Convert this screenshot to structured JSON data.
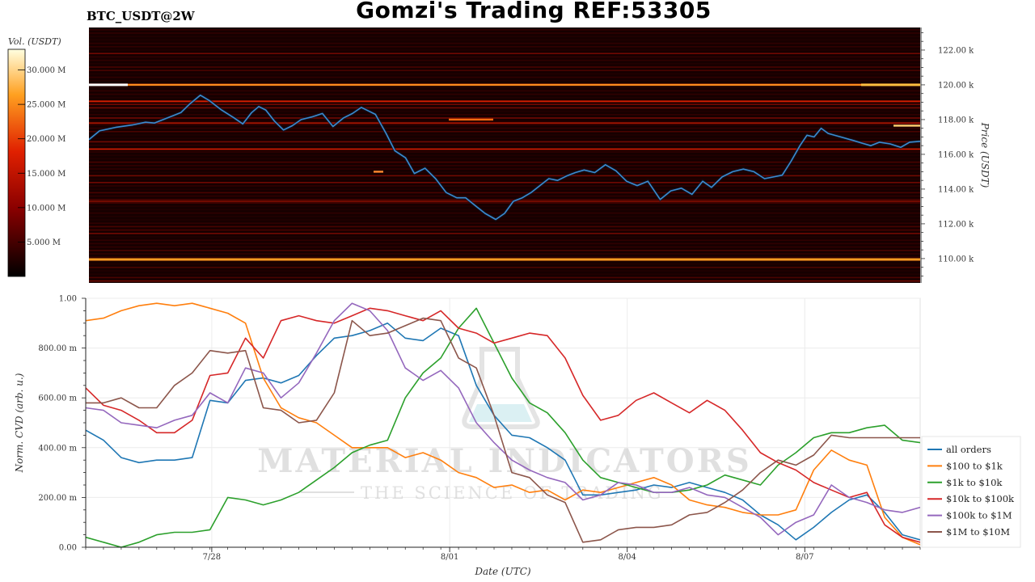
{
  "header": {
    "title": "Gomzi's Trading REF:53305",
    "symbol": "BTC_USDT@2W"
  },
  "colorbar": {
    "label": "Vol. (USDT)",
    "ticks": [
      "30.000 M",
      "25.000 M",
      "20.000 M",
      "15.000 M",
      "10.000 M",
      "5.000 M"
    ]
  },
  "watermark": {
    "line1": "MATERIAL INDICATORS",
    "line2": "THE SCIENCE OF TRADING"
  },
  "chart_data": [
    {
      "type": "heatmap",
      "title": "BTC_USDT@2W",
      "ylabel": "Price (USDT)",
      "ylim": [
        108600,
        123300
      ],
      "yticks": [
        110000,
        112000,
        114000,
        116000,
        118000,
        120000,
        122000
      ],
      "ytick_labels": [
        "110.00 k",
        "112.00 k",
        "114.00 k",
        "116.00 k",
        "118.00 k",
        "120.00 k",
        "122.00 k"
      ],
      "colorbar_range_musdt": [
        0,
        33
      ],
      "price_line": {
        "name": "price",
        "color": "#3b8bd0",
        "x": [
          0,
          0.6,
          1.5,
          2.5,
          3.2,
          3.7,
          4.2,
          4.7,
          5.2,
          5.7,
          6.3,
          6.8,
          7.5,
          8.2,
          8.7,
          9.2,
          9.6,
          10.0,
          10.5,
          11.0,
          11.5,
          12.0,
          12.6,
          13.2,
          13.8,
          14.4,
          14.9,
          15.4,
          15.8,
          16.2,
          16.8,
          17.3,
          17.9,
          18.4,
          19.0,
          19.6,
          20.2,
          20.8,
          21.3,
          21.9,
          22.4,
          23.0,
          23.5,
          24.0,
          24.5,
          25.0,
          25.5,
          26.0,
          26.5,
          27.0,
          27.5,
          28.0,
          28.6,
          29.2,
          29.8,
          30.4,
          31.0,
          31.6,
          32.3,
          32.9,
          33.5,
          34.1,
          34.7,
          35.2,
          35.8,
          36.4,
          37.0,
          37.6,
          38.2,
          38.7,
          39.2,
          39.7,
          40.2,
          40.6,
          41.0,
          41.4,
          41.8,
          42.5,
          43.2,
          43.7,
          44.2,
          44.7,
          45.3,
          45.9,
          46.4,
          47.0
        ],
        "y": [
          116850,
          117350,
          117550,
          117700,
          117850,
          117800,
          118000,
          118200,
          118400,
          118900,
          119400,
          119100,
          118550,
          118100,
          117750,
          118400,
          118750,
          118550,
          117900,
          117400,
          117650,
          118000,
          118150,
          118350,
          117600,
          118100,
          118350,
          118700,
          118500,
          118300,
          117200,
          116200,
          115800,
          114900,
          115200,
          114600,
          113800,
          113500,
          113500,
          113000,
          112600,
          112250,
          112600,
          113300,
          113500,
          113800,
          114200,
          114600,
          114500,
          114750,
          114950,
          115100,
          114950,
          115400,
          115050,
          114450,
          114200,
          114450,
          113400,
          113900,
          114050,
          113700,
          114450,
          114100,
          114700,
          115000,
          115150,
          115000,
          114600,
          114700,
          114800,
          115600,
          116500,
          117100,
          117000,
          117500,
          117200,
          117000,
          116800,
          116650,
          116500,
          116700,
          116600,
          116400,
          116700,
          116750
        ]
      }
    },
    {
      "type": "line",
      "xlabel": "Date (UTC)",
      "ylabel": "Norm. CVD (arb. u.)",
      "xlim": [
        0,
        47
      ],
      "ylim": [
        0,
        1
      ],
      "xticks": [
        7.1,
        20.5,
        30.5,
        40.5
      ],
      "xtick_labels": [
        "7/28",
        "8/01",
        "8/04",
        "8/07"
      ],
      "yticks": [
        0,
        0.2,
        0.4,
        0.6,
        0.8,
        1.0
      ],
      "ytick_labels": [
        "0.00",
        "200.00 m",
        "400.00 m",
        "600.00 m",
        "800.00 m",
        "1.00"
      ],
      "grid": true,
      "legend": "right",
      "x": [
        0,
        1,
        2,
        3,
        4,
        5,
        6,
        7,
        8,
        9,
        10,
        11,
        12,
        13,
        14,
        15,
        16,
        17,
        18,
        19,
        20,
        21,
        22,
        23,
        24,
        25,
        26,
        27,
        28,
        29,
        30,
        31,
        32,
        33,
        34,
        35,
        36,
        37,
        38,
        39,
        40,
        41,
        42,
        43,
        44,
        45,
        46,
        47
      ],
      "series": [
        {
          "name": "all orders",
          "color": "#1f77b4",
          "values": [
            0.47,
            0.43,
            0.36,
            0.34,
            0.35,
            0.35,
            0.36,
            0.59,
            0.58,
            0.67,
            0.68,
            0.66,
            0.69,
            0.77,
            0.84,
            0.85,
            0.87,
            0.9,
            0.84,
            0.83,
            0.88,
            0.85,
            0.65,
            0.53,
            0.45,
            0.44,
            0.4,
            0.35,
            0.21,
            0.21,
            0.22,
            0.23,
            0.25,
            0.24,
            0.26,
            0.24,
            0.22,
            0.19,
            0.13,
            0.09,
            0.03,
            0.08,
            0.14,
            0.19,
            0.21,
            0.14,
            0.05,
            0.03
          ]
        },
        {
          "name": "$100 to $1k",
          "color": "#ff7f0e",
          "values": [
            0.91,
            0.92,
            0.95,
            0.97,
            0.98,
            0.97,
            0.98,
            0.96,
            0.94,
            0.9,
            0.68,
            0.56,
            0.52,
            0.5,
            0.45,
            0.4,
            0.4,
            0.4,
            0.36,
            0.38,
            0.35,
            0.3,
            0.28,
            0.24,
            0.25,
            0.22,
            0.23,
            0.19,
            0.23,
            0.22,
            0.24,
            0.26,
            0.28,
            0.25,
            0.19,
            0.17,
            0.16,
            0.14,
            0.13,
            0.13,
            0.15,
            0.31,
            0.39,
            0.35,
            0.33,
            0.12,
            0.04,
            0.01
          ]
        },
        {
          "name": "$1k to $10k",
          "color": "#2ca02c",
          "values": [
            0.04,
            0.02,
            0.0,
            0.02,
            0.05,
            0.06,
            0.06,
            0.07,
            0.2,
            0.19,
            0.17,
            0.19,
            0.22,
            0.27,
            0.32,
            0.38,
            0.41,
            0.43,
            0.6,
            0.7,
            0.76,
            0.88,
            0.96,
            0.82,
            0.68,
            0.58,
            0.54,
            0.46,
            0.35,
            0.28,
            0.26,
            0.24,
            0.22,
            0.22,
            0.23,
            0.25,
            0.29,
            0.27,
            0.25,
            0.33,
            0.38,
            0.44,
            0.46,
            0.46,
            0.48,
            0.49,
            0.43,
            0.42
          ]
        },
        {
          "name": "$10k to $100k",
          "color": "#d62728",
          "values": [
            0.64,
            0.57,
            0.55,
            0.51,
            0.46,
            0.46,
            0.51,
            0.69,
            0.7,
            0.84,
            0.76,
            0.91,
            0.93,
            0.91,
            0.9,
            0.93,
            0.96,
            0.95,
            0.93,
            0.91,
            0.95,
            0.88,
            0.86,
            0.82,
            0.84,
            0.86,
            0.85,
            0.76,
            0.61,
            0.51,
            0.53,
            0.59,
            0.62,
            0.58,
            0.54,
            0.59,
            0.55,
            0.47,
            0.38,
            0.34,
            0.31,
            0.26,
            0.23,
            0.2,
            0.22,
            0.09,
            0.04,
            0.02
          ]
        },
        {
          "name": "$100k to $1M",
          "color": "#9467bd",
          "values": [
            0.56,
            0.55,
            0.5,
            0.49,
            0.48,
            0.51,
            0.53,
            0.62,
            0.58,
            0.72,
            0.7,
            0.6,
            0.66,
            0.78,
            0.91,
            0.98,
            0.95,
            0.87,
            0.72,
            0.67,
            0.71,
            0.64,
            0.5,
            0.42,
            0.35,
            0.31,
            0.28,
            0.26,
            0.19,
            0.21,
            0.26,
            0.25,
            0.22,
            0.22,
            0.24,
            0.21,
            0.2,
            0.16,
            0.12,
            0.05,
            0.1,
            0.13,
            0.25,
            0.2,
            0.18,
            0.15,
            0.14,
            0.16
          ]
        },
        {
          "name": "$1M to $10M",
          "color": "#8c564b",
          "values": [
            0.58,
            0.58,
            0.6,
            0.56,
            0.56,
            0.65,
            0.7,
            0.79,
            0.78,
            0.79,
            0.56,
            0.55,
            0.5,
            0.51,
            0.62,
            0.91,
            0.85,
            0.86,
            0.89,
            0.92,
            0.91,
            0.76,
            0.72,
            0.53,
            0.3,
            0.28,
            0.21,
            0.18,
            0.02,
            0.03,
            0.07,
            0.08,
            0.08,
            0.09,
            0.13,
            0.14,
            0.18,
            0.23,
            0.3,
            0.35,
            0.33,
            0.37,
            0.45,
            0.44,
            0.44,
            0.44,
            0.44,
            0.44
          ]
        }
      ]
    }
  ]
}
